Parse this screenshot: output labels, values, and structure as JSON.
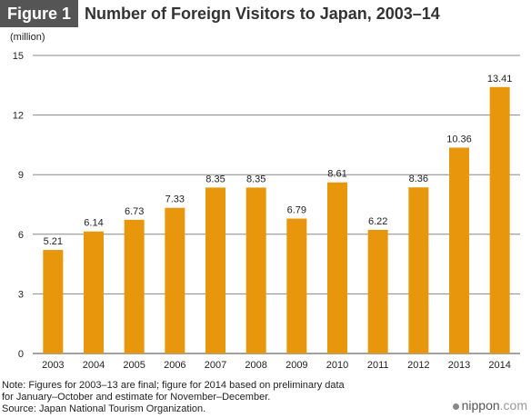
{
  "figure_label": "Figure 1",
  "title": "Number of Foreign Visitors to Japan, 2003–14",
  "unit": "(million)",
  "chart_data": {
    "type": "bar",
    "categories": [
      "2003",
      "2004",
      "2005",
      "2006",
      "2007",
      "2008",
      "2009",
      "2010",
      "2011",
      "2012",
      "2013",
      "2014"
    ],
    "values": [
      5.21,
      6.14,
      6.73,
      7.33,
      8.35,
      8.35,
      6.79,
      8.61,
      6.22,
      8.36,
      10.36,
      13.41
    ],
    "value_labels": [
      "5.21",
      "6.14",
      "6.73",
      "7.33",
      "8.35",
      "8.35",
      "6.79",
      "8.61",
      "6.22",
      "8.36",
      "10.36",
      "13.41"
    ],
    "ylim": [
      0,
      15
    ],
    "yticks": [
      0,
      3,
      6,
      9,
      12,
      15
    ],
    "ytick_labels": [
      "0",
      "3",
      "6",
      "9",
      "12",
      "15"
    ],
    "ylabel": "(million)",
    "xlabel": "",
    "bar_color": "#e8960c",
    "grid": true
  },
  "notes": [
    "Note: Figures for 2003–13 are final; figure for 2014 based on preliminary data",
    "for January–October and estimate for November–December.",
    "Source: Japan National Tourism Organization."
  ],
  "logo": {
    "name": "nippon",
    "suffix": ".com"
  }
}
